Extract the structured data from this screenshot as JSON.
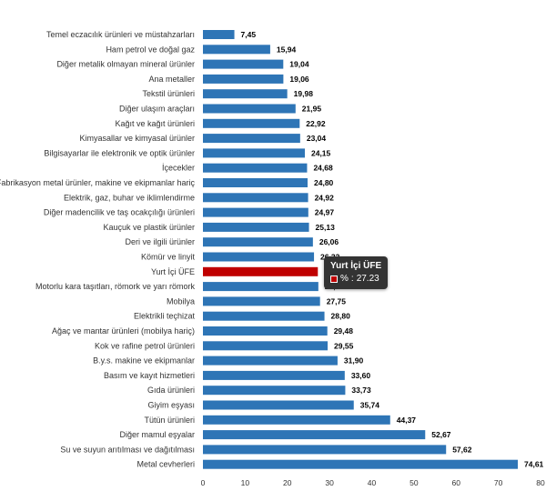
{
  "chart_data": {
    "type": "bar",
    "orientation": "horizontal",
    "categories": [
      "Temel eczacılık ürünleri ve müstahzarları",
      "Ham petrol ve doğal gaz",
      "Diğer metalik olmayan mineral ürünler",
      "Ana metaller",
      "Tekstil ürünleri",
      "Diğer ulaşım araçları",
      "Kağıt ve kağıt ürünleri",
      "Kimyasallar ve kimyasal ürünler",
      "Bilgisayarlar ile elektronik ve optik ürünler",
      "İçecekler",
      "Fabrikasyon metal ürünler, makine ve ekipmanlar hariç",
      "Elektrik, gaz, buhar ve iklimlendirme",
      "Diğer madencilik ve taş ocakçılığı ürünleri",
      "Kauçuk ve plastik ürünler",
      "Deri ve ilgili ürünler",
      "Kömür ve linyit",
      "Yurt İçi ÜFE",
      "Motorlu kara taşıtları, römork ve yarı römork",
      "Mobilya",
      "Elektrikli teçhizat",
      "Ağaç ve mantar ürünleri (mobilya hariç)",
      "Kok ve rafine petrol ürünleri",
      "B.y.s. makine ve ekipmanlar",
      "Basım ve kayıt hizmetleri",
      "Gıda ürünleri",
      "Giyim eşyası",
      "Tütün ürünleri",
      "Diğer mamul eşyalar",
      "Su ve suyun arıtılması ve dağıtılması",
      "Metal cevherleri"
    ],
    "values": [
      7.45,
      15.94,
      19.04,
      19.06,
      19.98,
      21.95,
      22.92,
      23.04,
      24.15,
      24.68,
      24.8,
      24.92,
      24.97,
      25.13,
      26.06,
      26.32,
      27.23,
      27.35,
      27.75,
      28.8,
      29.48,
      29.55,
      31.9,
      33.6,
      33.73,
      35.74,
      44.37,
      52.67,
      57.62,
      74.61
    ],
    "value_labels": [
      "7,45",
      "15,94",
      "19,04",
      "19,06",
      "19,98",
      "21,95",
      "22,92",
      "23,04",
      "24,15",
      "24,68",
      "24,80",
      "24,92",
      "24,97",
      "25,13",
      "26,06",
      "26,32",
      "27,23",
      "27,35",
      "27,75",
      "28,80",
      "29,48",
      "29,55",
      "31,90",
      "33,60",
      "33,73",
      "35,74",
      "44,37",
      "52,67",
      "57,62",
      "74,61"
    ],
    "highlight_category": "Yurt İçi ÜFE",
    "xlim": [
      0,
      80
    ],
    "x_ticks": [
      0,
      10,
      20,
      30,
      40,
      50,
      60,
      70,
      80
    ],
    "grid": false,
    "legend": "none",
    "colors": {
      "bar": "#2e75b6",
      "highlight": "#c00000",
      "label": "#333333"
    }
  },
  "tooltip": {
    "title": "Yurt İçi ÜFE",
    "series_symbol": "%",
    "value_text": "27.23"
  }
}
